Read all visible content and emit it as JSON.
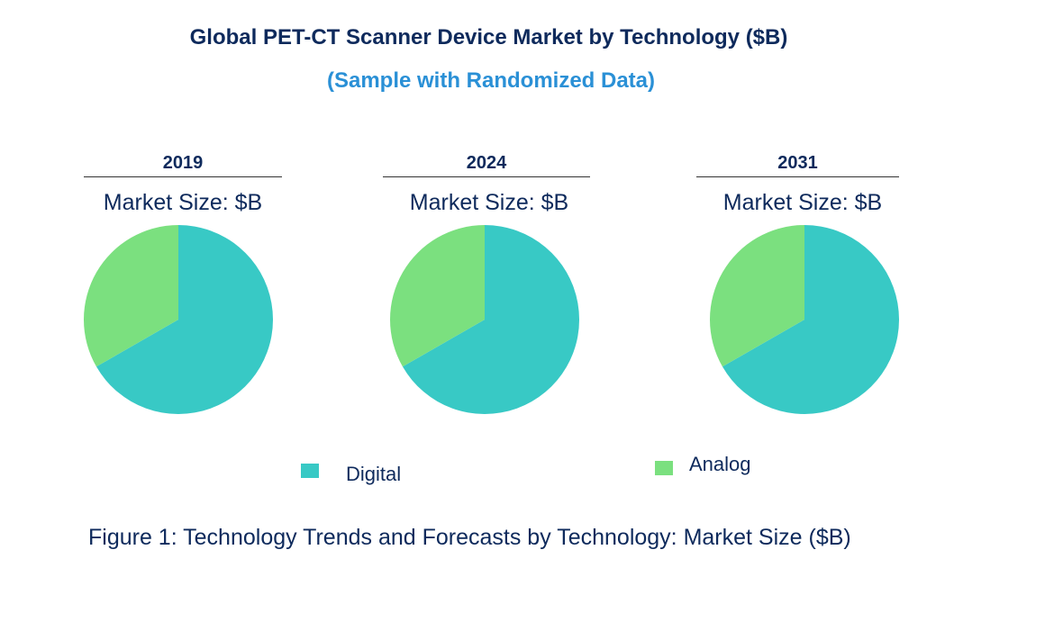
{
  "title": "Global PET-CT Scanner Device Market by Technology ($B)",
  "subtitle": "(Sample with Randomized Data)",
  "caption": "Figure 1: Technology Trends and Forecasts by Technology: Market Size ($B)",
  "chart_data": [
    {
      "type": "pie",
      "title": "2019",
      "subtitle": "Market Size: $B",
      "categories": [
        "Digital",
        "Analog"
      ],
      "values": [
        66.7,
        33.3
      ]
    },
    {
      "type": "pie",
      "title": "2024",
      "subtitle": "Market Size: $B",
      "categories": [
        "Digital",
        "Analog"
      ],
      "values": [
        66.7,
        33.3
      ]
    },
    {
      "type": "pie",
      "title": "2031",
      "subtitle": "Market Size: $B",
      "categories": [
        "Digital",
        "Analog"
      ],
      "values": [
        66.7,
        33.3
      ]
    }
  ],
  "legend": [
    {
      "label": "Digital",
      "color": "#38C9C5"
    },
    {
      "label": "Analog",
      "color": "#7BE07F"
    }
  ],
  "legend_placement": "bottom"
}
